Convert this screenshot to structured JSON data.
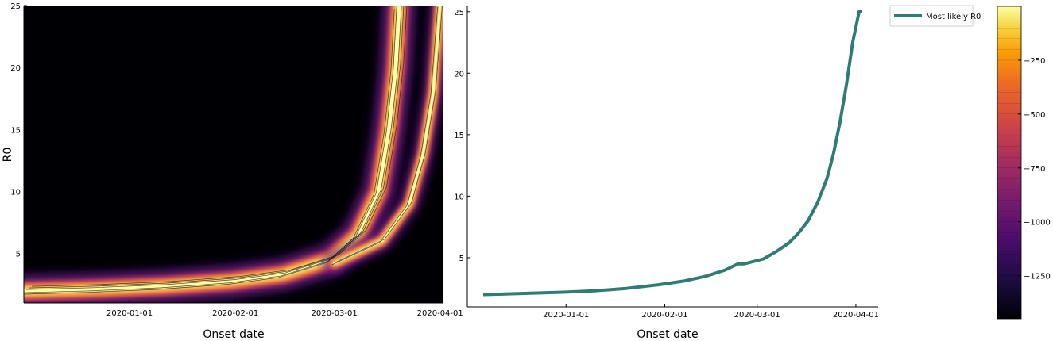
{
  "chart_data": [
    {
      "type": "heatmap",
      "panel": "left",
      "xlabel": "Onset date",
      "ylabel": "R0",
      "x_ticks": [
        "2020-01-01",
        "2020-02-01",
        "2020-03-01",
        "2020-04-01"
      ],
      "y_ticks": [
        "5",
        "10",
        "15",
        "20",
        "25"
      ],
      "xlim": [
        "2019-12-01",
        "2020-04-02"
      ],
      "ylim": [
        1,
        25
      ],
      "colormap": "inferno",
      "background_color": "#000004",
      "ridges": [
        {
          "date": "2019-12-01",
          "r0": 1.95
        },
        {
          "date": "2019-12-21",
          "r0": 2.1
        },
        {
          "date": "2020-01-11",
          "r0": 2.35
        },
        {
          "date": "2020-01-31",
          "r0": 2.75
        },
        {
          "date": "2020-02-15",
          "r0": 3.3
        },
        {
          "date": "2020-02-29",
          "r0": 4.5
        },
        {
          "date": "2020-03-08",
          "r0": 6.5
        },
        {
          "date": "2020-03-14",
          "r0": 10.0
        },
        {
          "date": "2020-03-17",
          "r0": 15.0
        },
        {
          "date": "2020-03-19",
          "r0": 20.0
        },
        {
          "date": "2020-03-20",
          "r0": 25.0
        }
      ],
      "ridge_secondary": [
        {
          "date": "2020-03-01",
          "r0": 4.2
        },
        {
          "date": "2020-03-15",
          "r0": 6.0
        },
        {
          "date": "2020-03-23",
          "r0": 9.0
        },
        {
          "date": "2020-03-27",
          "r0": 13.0
        },
        {
          "date": "2020-03-30",
          "r0": 18.0
        },
        {
          "date": "2020-04-01",
          "r0": 25.0
        }
      ]
    },
    {
      "type": "line",
      "panel": "right",
      "xlabel": "Onset date",
      "ylabel": "",
      "x_ticks": [
        "2020-01-01",
        "2020-02-01",
        "2020-03-01",
        "2020-04-01"
      ],
      "y_ticks": [
        "5",
        "10",
        "15",
        "20",
        "25"
      ],
      "xlim": [
        "2019-12-01",
        "2020-04-08"
      ],
      "ylim": [
        1,
        25.5
      ],
      "legend_position": "top-right",
      "series": [
        {
          "name": "Most likely R0",
          "color": "#2f7b76",
          "points": [
            {
              "x": "2019-12-06",
              "y": 2.0
            },
            {
              "x": "2019-12-20",
              "y": 2.1
            },
            {
              "x": "2020-01-01",
              "y": 2.2
            },
            {
              "x": "2020-01-10",
              "y": 2.3
            },
            {
              "x": "2020-01-20",
              "y": 2.5
            },
            {
              "x": "2020-01-30",
              "y": 2.8
            },
            {
              "x": "2020-02-07",
              "y": 3.1
            },
            {
              "x": "2020-02-14",
              "y": 3.5
            },
            {
              "x": "2020-02-20",
              "y": 4.0
            },
            {
              "x": "2020-02-24",
              "y": 4.5
            },
            {
              "x": "2020-02-26",
              "y": 4.5
            },
            {
              "x": "2020-03-03",
              "y": 4.9
            },
            {
              "x": "2020-03-07",
              "y": 5.5
            },
            {
              "x": "2020-03-11",
              "y": 6.2
            },
            {
              "x": "2020-03-14",
              "y": 7.0
            },
            {
              "x": "2020-03-17",
              "y": 8.0
            },
            {
              "x": "2020-03-20",
              "y": 9.5
            },
            {
              "x": "2020-03-23",
              "y": 11.5
            },
            {
              "x": "2020-03-25",
              "y": 13.5
            },
            {
              "x": "2020-03-27",
              "y": 16.0
            },
            {
              "x": "2020-03-29",
              "y": 19.0
            },
            {
              "x": "2020-03-31",
              "y": 22.5
            },
            {
              "x": "2020-04-02",
              "y": 25.0
            },
            {
              "x": "2020-04-03",
              "y": 25.0
            }
          ]
        }
      ]
    },
    {
      "type": "colorbar",
      "range": [
        -1450,
        0
      ],
      "ticks": [
        "−250",
        "−500",
        "−750",
        "−1000",
        "−1250"
      ],
      "tick_values": [
        -250,
        -500,
        -750,
        -1000,
        -1250
      ],
      "colormap": "inferno"
    }
  ]
}
